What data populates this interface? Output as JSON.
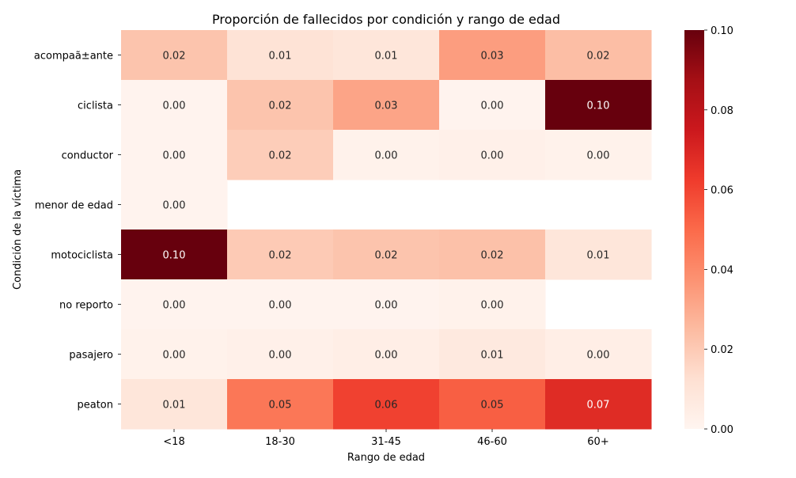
{
  "chart_data": {
    "type": "heatmap",
    "title": "Proporción de fallecidos por condición y rango de edad",
    "xlabel": "Rango de edad",
    "ylabel": "Condición de la víctima",
    "x_categories": [
      "<18",
      "18-30",
      "31-45",
      "46-60",
      "60+"
    ],
    "y_categories": [
      "acompaã±ante",
      "ciclista",
      "conductor",
      "menor de edad",
      "motociclista",
      "no reporto",
      "pasajero",
      "peaton"
    ],
    "values": [
      [
        0.02,
        0.01,
        0.01,
        0.03,
        0.02
      ],
      [
        0.0,
        0.02,
        0.03,
        0.0,
        0.1
      ],
      [
        0.0,
        0.02,
        0.0,
        0.0,
        0.0
      ],
      [
        0.0,
        null,
        null,
        null,
        null
      ],
      [
        0.1,
        0.02,
        0.02,
        0.02,
        0.01
      ],
      [
        0.0,
        0.0,
        0.0,
        0.0,
        null
      ],
      [
        0.0,
        0.0,
        0.0,
        0.01,
        0.0
      ],
      [
        0.01,
        0.05,
        0.06,
        0.05,
        0.07
      ]
    ],
    "cell_values": [
      [
        0.022,
        0.011,
        0.009,
        0.034,
        0.024
      ],
      [
        0.001,
        0.022,
        0.032,
        0.001,
        0.1
      ],
      [
        0.001,
        0.019,
        0.002,
        0.003,
        0.002
      ],
      [
        0.001,
        null,
        null,
        null,
        null
      ],
      [
        0.1,
        0.02,
        0.022,
        0.023,
        0.009
      ],
      [
        0.001,
        0.001,
        0.001,
        0.002,
        null
      ],
      [
        0.002,
        0.003,
        0.004,
        0.007,
        0.004
      ],
      [
        0.009,
        0.046,
        0.061,
        0.053,
        0.068
      ]
    ],
    "colorbar": {
      "min": 0.0,
      "max": 0.1,
      "ticks": [
        "0.00",
        "0.02",
        "0.04",
        "0.06",
        "0.08",
        "0.10"
      ],
      "colormap": "Reds"
    },
    "annotation_format": "0.00",
    "grid": false,
    "legend": "colorbar-right"
  }
}
